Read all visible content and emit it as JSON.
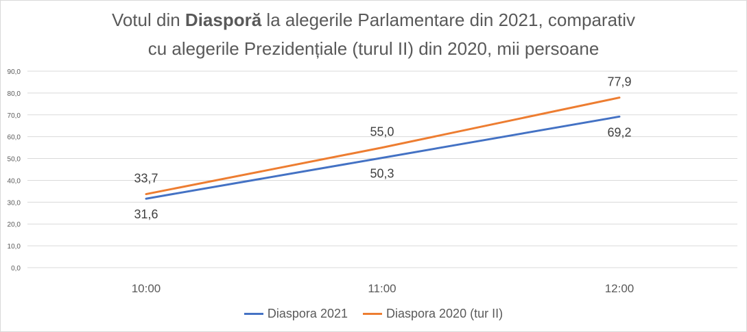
{
  "chart_data": {
    "type": "line",
    "title_parts": {
      "pre": "Votul din ",
      "bold": "Diasporă",
      "post": " la alegerile Parlamentare din 2021, comparativ",
      "line2": "cu alegerile Prezidențiale (turul II) din 2020, mii persoane"
    },
    "categories": [
      "10:00",
      "11:00",
      "12:00"
    ],
    "series": [
      {
        "name": "Diaspora 2021",
        "color": "#4472c4",
        "values": [
          31.6,
          50.3,
          69.2
        ],
        "labels": [
          "31,6",
          "50,3",
          "69,2"
        ],
        "label_pos": "below"
      },
      {
        "name": "Diaspora 2020 (tur II)",
        "color": "#ed7d31",
        "values": [
          33.7,
          55.0,
          77.9
        ],
        "labels": [
          "33,7",
          "55,0",
          "77,9"
        ],
        "label_pos": "above"
      }
    ],
    "ylim": [
      0,
      90
    ],
    "yticks": [
      "0,0",
      "10,0",
      "20,0",
      "30,0",
      "40,0",
      "50,0",
      "60,0",
      "70,0",
      "80,0",
      "90,0"
    ],
    "grid": true,
    "legend": "bottom"
  }
}
